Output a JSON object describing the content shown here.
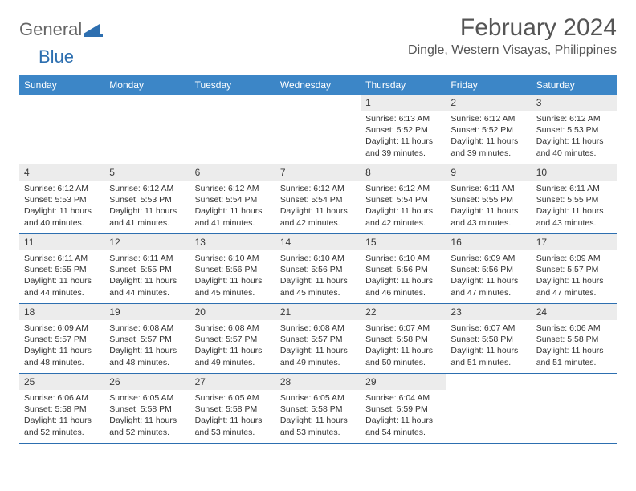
{
  "logo": {
    "part1": "General",
    "part2": "Blue"
  },
  "title": "February 2024",
  "location": "Dingle, Western Visayas, Philippines",
  "day_names": [
    "Sunday",
    "Monday",
    "Tuesday",
    "Wednesday",
    "Thursday",
    "Friday",
    "Saturday"
  ],
  "colors": {
    "header_bg": "#3c86c7",
    "border": "#2d6fb0",
    "daynum_bg": "#ececec",
    "text": "#333333",
    "title": "#555555"
  },
  "weeks": [
    [
      {
        "n": "",
        "sr": "",
        "ss": "",
        "dl": ""
      },
      {
        "n": "",
        "sr": "",
        "ss": "",
        "dl": ""
      },
      {
        "n": "",
        "sr": "",
        "ss": "",
        "dl": ""
      },
      {
        "n": "",
        "sr": "",
        "ss": "",
        "dl": ""
      },
      {
        "n": "1",
        "sr": "6:13 AM",
        "ss": "5:52 PM",
        "dl": "11 hours and 39 minutes."
      },
      {
        "n": "2",
        "sr": "6:12 AM",
        "ss": "5:52 PM",
        "dl": "11 hours and 39 minutes."
      },
      {
        "n": "3",
        "sr": "6:12 AM",
        "ss": "5:53 PM",
        "dl": "11 hours and 40 minutes."
      }
    ],
    [
      {
        "n": "4",
        "sr": "6:12 AM",
        "ss": "5:53 PM",
        "dl": "11 hours and 40 minutes."
      },
      {
        "n": "5",
        "sr": "6:12 AM",
        "ss": "5:53 PM",
        "dl": "11 hours and 41 minutes."
      },
      {
        "n": "6",
        "sr": "6:12 AM",
        "ss": "5:54 PM",
        "dl": "11 hours and 41 minutes."
      },
      {
        "n": "7",
        "sr": "6:12 AM",
        "ss": "5:54 PM",
        "dl": "11 hours and 42 minutes."
      },
      {
        "n": "8",
        "sr": "6:12 AM",
        "ss": "5:54 PM",
        "dl": "11 hours and 42 minutes."
      },
      {
        "n": "9",
        "sr": "6:11 AM",
        "ss": "5:55 PM",
        "dl": "11 hours and 43 minutes."
      },
      {
        "n": "10",
        "sr": "6:11 AM",
        "ss": "5:55 PM",
        "dl": "11 hours and 43 minutes."
      }
    ],
    [
      {
        "n": "11",
        "sr": "6:11 AM",
        "ss": "5:55 PM",
        "dl": "11 hours and 44 minutes."
      },
      {
        "n": "12",
        "sr": "6:11 AM",
        "ss": "5:55 PM",
        "dl": "11 hours and 44 minutes."
      },
      {
        "n": "13",
        "sr": "6:10 AM",
        "ss": "5:56 PM",
        "dl": "11 hours and 45 minutes."
      },
      {
        "n": "14",
        "sr": "6:10 AM",
        "ss": "5:56 PM",
        "dl": "11 hours and 45 minutes."
      },
      {
        "n": "15",
        "sr": "6:10 AM",
        "ss": "5:56 PM",
        "dl": "11 hours and 46 minutes."
      },
      {
        "n": "16",
        "sr": "6:09 AM",
        "ss": "5:56 PM",
        "dl": "11 hours and 47 minutes."
      },
      {
        "n": "17",
        "sr": "6:09 AM",
        "ss": "5:57 PM",
        "dl": "11 hours and 47 minutes."
      }
    ],
    [
      {
        "n": "18",
        "sr": "6:09 AM",
        "ss": "5:57 PM",
        "dl": "11 hours and 48 minutes."
      },
      {
        "n": "19",
        "sr": "6:08 AM",
        "ss": "5:57 PM",
        "dl": "11 hours and 48 minutes."
      },
      {
        "n": "20",
        "sr": "6:08 AM",
        "ss": "5:57 PM",
        "dl": "11 hours and 49 minutes."
      },
      {
        "n": "21",
        "sr": "6:08 AM",
        "ss": "5:57 PM",
        "dl": "11 hours and 49 minutes."
      },
      {
        "n": "22",
        "sr": "6:07 AM",
        "ss": "5:58 PM",
        "dl": "11 hours and 50 minutes."
      },
      {
        "n": "23",
        "sr": "6:07 AM",
        "ss": "5:58 PM",
        "dl": "11 hours and 51 minutes."
      },
      {
        "n": "24",
        "sr": "6:06 AM",
        "ss": "5:58 PM",
        "dl": "11 hours and 51 minutes."
      }
    ],
    [
      {
        "n": "25",
        "sr": "6:06 AM",
        "ss": "5:58 PM",
        "dl": "11 hours and 52 minutes."
      },
      {
        "n": "26",
        "sr": "6:05 AM",
        "ss": "5:58 PM",
        "dl": "11 hours and 52 minutes."
      },
      {
        "n": "27",
        "sr": "6:05 AM",
        "ss": "5:58 PM",
        "dl": "11 hours and 53 minutes."
      },
      {
        "n": "28",
        "sr": "6:05 AM",
        "ss": "5:58 PM",
        "dl": "11 hours and 53 minutes."
      },
      {
        "n": "29",
        "sr": "6:04 AM",
        "ss": "5:59 PM",
        "dl": "11 hours and 54 minutes."
      },
      {
        "n": "",
        "sr": "",
        "ss": "",
        "dl": ""
      },
      {
        "n": "",
        "sr": "",
        "ss": "",
        "dl": ""
      }
    ]
  ],
  "labels": {
    "sunrise": "Sunrise:",
    "sunset": "Sunset:",
    "daylight": "Daylight:"
  }
}
